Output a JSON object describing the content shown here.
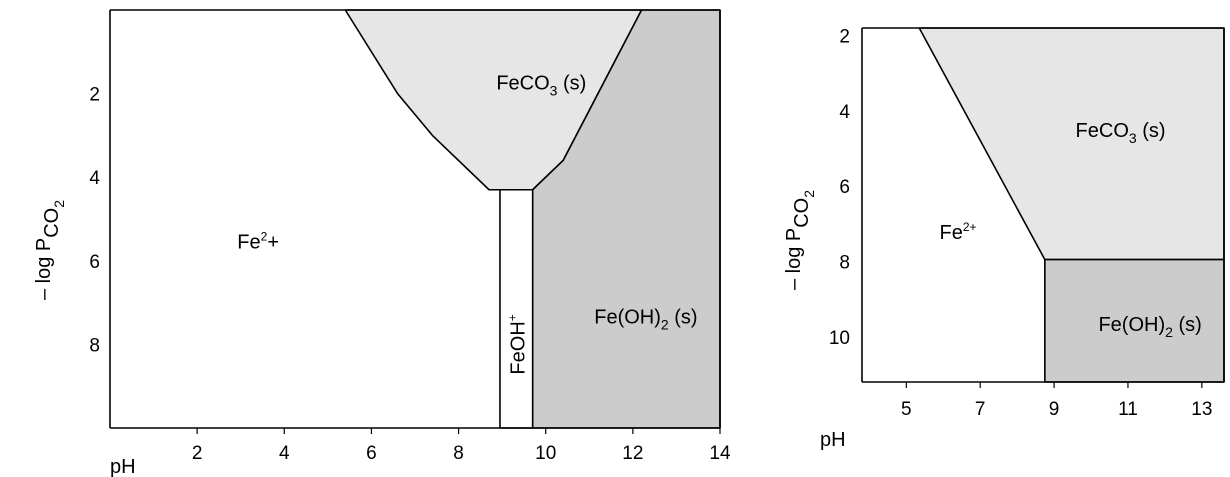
{
  "chart_data": [
    {
      "type": "area",
      "description_of_axes": "pH vs -log PCO2",
      "xlabel": "pH",
      "ylabel_parts": {
        "main": "– log P",
        "sub": "CO",
        "sub2": "2"
      },
      "x_ticks": [
        2,
        4,
        6,
        8,
        10,
        12,
        14
      ],
      "y_ticks": [
        2,
        4,
        6,
        8
      ],
      "xlim": [
        0,
        14
      ],
      "ylim": [
        0,
        10
      ],
      "y_inverted": true,
      "regions": [
        {
          "name": "FeCO3",
          "label_parts": {
            "main": "FeCO",
            "sub": "3",
            "tail": "  (s)"
          },
          "color": "#e6e6e6",
          "label_at": [
            9.9,
            1.9
          ],
          "boundary": [
            [
              5.4,
              0
            ],
            [
              6.0,
              1.0
            ],
            [
              6.6,
              2.0
            ],
            [
              7.4,
              3.0
            ],
            [
              8.7,
              4.3
            ],
            [
              9.7,
              4.3
            ],
            [
              10.4,
              3.6
            ],
            [
              11.0,
              2.4
            ],
            [
              11.6,
              1.2
            ],
            [
              12.2,
              0
            ]
          ]
        },
        {
          "name": "Fe(OH)2",
          "label_parts": {
            "main": "Fe(OH)",
            "sub": "2",
            "tail": " (s)"
          },
          "color": "#cccccc",
          "label_at": [
            12.3,
            7.5
          ],
          "boundary": [
            [
              9.7,
              4.3
            ],
            [
              10.4,
              3.6
            ],
            [
              11.0,
              2.4
            ],
            [
              11.6,
              1.2
            ],
            [
              12.2,
              0
            ],
            [
              14.0,
              0
            ],
            [
              14.0,
              10.0
            ],
            [
              9.7,
              10.0
            ]
          ]
        },
        {
          "name": "Fe2+",
          "label_parts": {
            "main": "Fe",
            "sup": "2",
            "tail": "+"
          },
          "color": "#ffffff",
          "label_at": [
            3.4,
            5.7
          ]
        },
        {
          "name": "FeOH+",
          "label_parts": {
            "main": "FeOH",
            "sup": "+"
          },
          "color": "#ffffff",
          "label_at": [
            9.35,
            8.0
          ],
          "vertical": true,
          "boundary": [
            [
              8.95,
              4.3
            ],
            [
              9.7,
              4.3
            ],
            [
              9.7,
              10.0
            ],
            [
              8.95,
              10.0
            ]
          ]
        }
      ]
    },
    {
      "type": "area",
      "xlabel": "pH",
      "ylabel_parts": {
        "main": "– log P",
        "sub": "CO",
        "sub2": "2"
      },
      "x_ticks": [
        5,
        7,
        9,
        11,
        13
      ],
      "y_ticks": [
        2,
        4,
        6,
        8,
        10
      ],
      "xlim": [
        3.8,
        13.6
      ],
      "ylim": [
        1.8,
        11.2
      ],
      "y_inverted": true,
      "regions": [
        {
          "name": "FeCO3",
          "label_parts": {
            "main": "FeCO",
            "sub": "3",
            "tail": " (s)"
          },
          "color": "#e6e6e6",
          "label_at": [
            10.8,
            4.7
          ],
          "boundary": [
            [
              5.35,
              1.8
            ],
            [
              13.6,
              1.8
            ],
            [
              13.6,
              7.95
            ],
            [
              8.75,
              7.95
            ]
          ]
        },
        {
          "name": "Fe(OH)2",
          "label_parts": {
            "main": "Fe(OH)",
            "sub": "2",
            "tail": " (s)"
          },
          "color": "#cccccc",
          "label_at": [
            11.6,
            9.85
          ],
          "boundary": [
            [
              8.75,
              7.95
            ],
            [
              13.6,
              7.95
            ],
            [
              13.6,
              11.2
            ],
            [
              8.75,
              11.2
            ]
          ]
        },
        {
          "name": "Fe2+",
          "label_parts": {
            "main": "Fe",
            "sup": "2+"
          },
          "color": "#ffffff",
          "label_at": [
            6.4,
            7.4
          ]
        }
      ]
    }
  ]
}
